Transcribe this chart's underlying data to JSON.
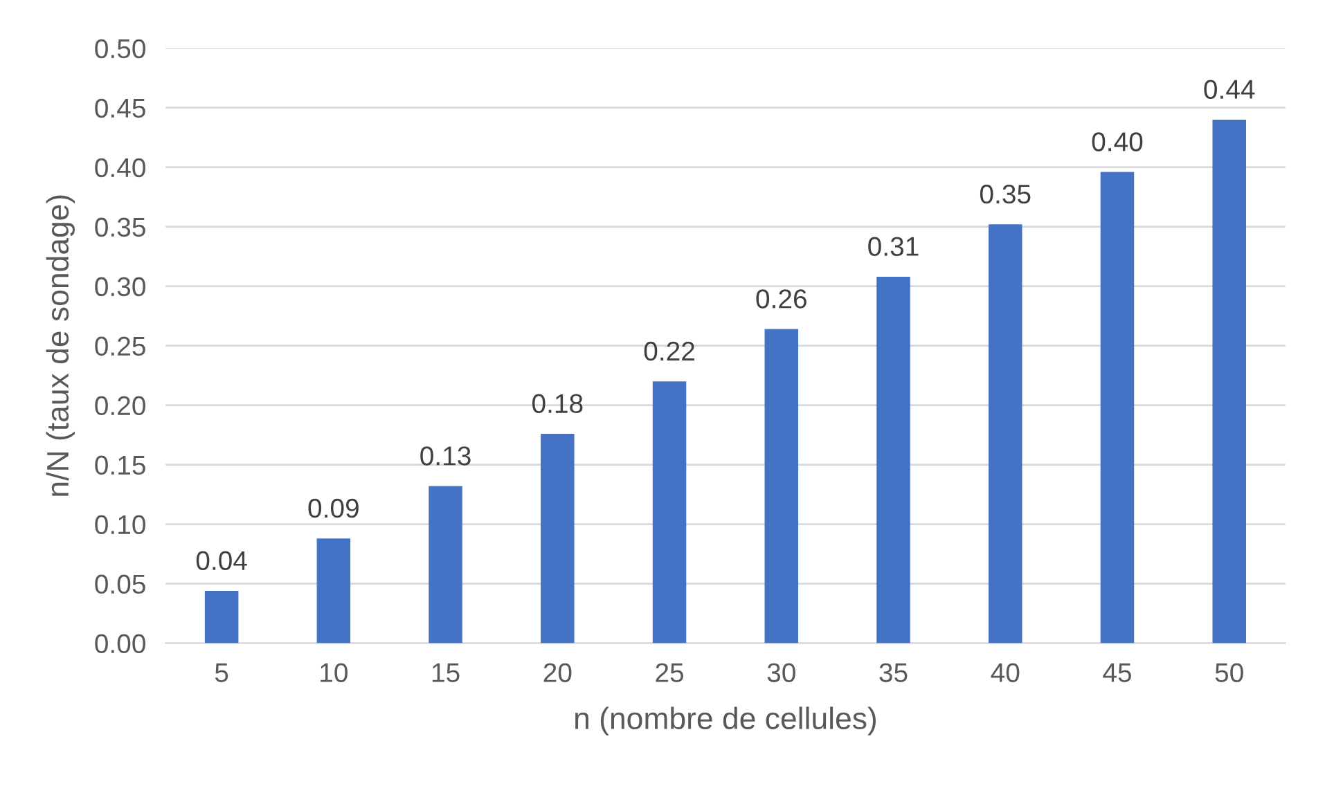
{
  "chart_data": {
    "type": "bar",
    "xlabel": "n (nombre de cellules)",
    "ylabel": "n/N (taux de sondage)",
    "categories": [
      "5",
      "10",
      "15",
      "20",
      "25",
      "30",
      "35",
      "40",
      "45",
      "50"
    ],
    "values": [
      0.044,
      0.088,
      0.132,
      0.176,
      0.22,
      0.264,
      0.308,
      0.352,
      0.396,
      0.44
    ],
    "value_labels": [
      "0.04",
      "0.09",
      "0.13",
      "0.18",
      "0.22",
      "0.26",
      "0.31",
      "0.35",
      "0.40",
      "0.44"
    ],
    "color": "#4472c4",
    "ylim": [
      0,
      0.5
    ],
    "yticks": [
      {
        "value": 0,
        "label": "0.00"
      },
      {
        "value": 0.05,
        "label": "0.05"
      },
      {
        "value": 0.1,
        "label": "0.10"
      },
      {
        "value": 0.15,
        "label": "0.15"
      },
      {
        "value": 0.2,
        "label": "0.20"
      },
      {
        "value": 0.25,
        "label": "0.25"
      },
      {
        "value": 0.3,
        "label": "0.30"
      },
      {
        "value": 0.35,
        "label": "0.35"
      },
      {
        "value": 0.4,
        "label": "0.40"
      },
      {
        "value": 0.45,
        "label": "0.45"
      },
      {
        "value": 0.5,
        "label": "0.50"
      }
    ],
    "grid": "y"
  }
}
